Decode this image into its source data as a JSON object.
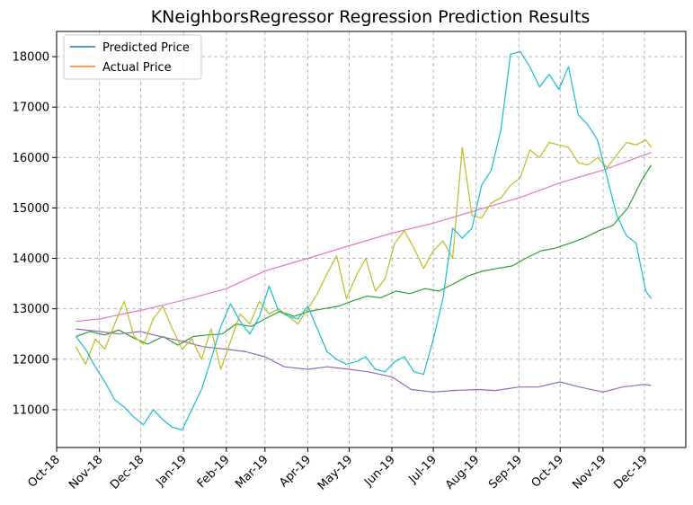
{
  "chart_data": {
    "type": "line",
    "title": "KNeighborsRegressor Regression Prediction Results",
    "xlabel": "",
    "ylabel": "",
    "x_range": [
      "2018-10-01",
      "2019-12-31"
    ],
    "ylim": [
      10250,
      18500
    ],
    "grid": true,
    "legend_position": "top-left",
    "x_ticks": [
      {
        "date": "2018-10-01",
        "label": "Oct-18"
      },
      {
        "date": "2018-11-01",
        "label": "Nov-18"
      },
      {
        "date": "2018-12-01",
        "label": "Dec-18"
      },
      {
        "date": "2019-01-01",
        "label": "Jan-19"
      },
      {
        "date": "2019-02-01",
        "label": "Feb-19"
      },
      {
        "date": "2019-03-01",
        "label": "Mar-19"
      },
      {
        "date": "2019-04-01",
        "label": "Apr-19"
      },
      {
        "date": "2019-05-01",
        "label": "May-19"
      },
      {
        "date": "2019-06-01",
        "label": "Jun-19"
      },
      {
        "date": "2019-07-01",
        "label": "Jul-19"
      },
      {
        "date": "2019-08-01",
        "label": "Aug-19"
      },
      {
        "date": "2019-09-01",
        "label": "Sep-19"
      },
      {
        "date": "2019-10-01",
        "label": "Oct-19"
      },
      {
        "date": "2019-11-01",
        "label": "Nov-19"
      },
      {
        "date": "2019-12-01",
        "label": "Dec-19"
      }
    ],
    "y_ticks": [
      11000,
      12000,
      13000,
      14000,
      15000,
      16000,
      17000,
      18000
    ],
    "legend": [
      {
        "label": "Predicted Price",
        "color": "#1f77b4"
      },
      {
        "label": "Actual Price",
        "color": "#ff7f0e"
      }
    ],
    "series": [
      {
        "color": "#2ca02c",
        "x": [
          "2018-10-15",
          "2018-10-25",
          "2018-11-05",
          "2018-11-15",
          "2018-11-26",
          "2018-12-06",
          "2018-12-17",
          "2018-12-28",
          "2019-01-08",
          "2019-01-18",
          "2019-01-29",
          "2019-02-08",
          "2019-02-19",
          "2019-03-01",
          "2019-03-12",
          "2019-03-22",
          "2019-04-02",
          "2019-04-12",
          "2019-04-23",
          "2019-05-03",
          "2019-05-14",
          "2019-05-24",
          "2019-06-04",
          "2019-06-14",
          "2019-06-25",
          "2019-07-05",
          "2019-07-16",
          "2019-07-26",
          "2019-08-06",
          "2019-08-16",
          "2019-08-27",
          "2019-09-06",
          "2019-09-17",
          "2019-09-27",
          "2019-10-08",
          "2019-10-18",
          "2019-10-29",
          "2019-11-08",
          "2019-11-19",
          "2019-11-29",
          "2019-12-06"
        ],
        "values": [
          12450,
          12550,
          12480,
          12580,
          12420,
          12300,
          12450,
          12280,
          12450,
          12480,
          12500,
          12700,
          12650,
          12800,
          12950,
          12850,
          12950,
          13000,
          13050,
          13150,
          13250,
          13220,
          13350,
          13300,
          13400,
          13350,
          13500,
          13650,
          13750,
          13800,
          13850,
          14000,
          14150,
          14200,
          14300,
          14400,
          14550,
          14650,
          15000,
          15550,
          15850
        ]
      },
      {
        "color": "#9467bd",
        "x": [
          "2018-10-15",
          "2018-11-01",
          "2018-11-15",
          "2018-12-01",
          "2018-12-15",
          "2019-01-01",
          "2019-01-15",
          "2019-02-01",
          "2019-02-15",
          "2019-03-01",
          "2019-03-15",
          "2019-04-01",
          "2019-04-15",
          "2019-05-01",
          "2019-05-15",
          "2019-06-01",
          "2019-06-15",
          "2019-07-01",
          "2019-07-15",
          "2019-08-01",
          "2019-08-15",
          "2019-09-01",
          "2019-09-15",
          "2019-10-01",
          "2019-10-15",
          "2019-11-01",
          "2019-11-15",
          "2019-12-01",
          "2019-12-06"
        ],
        "values": [
          12600,
          12550,
          12500,
          12550,
          12450,
          12350,
          12250,
          12200,
          12150,
          12050,
          11850,
          11800,
          11850,
          11800,
          11750,
          11650,
          11400,
          11350,
          11380,
          11400,
          11380,
          11450,
          11450,
          11550,
          11450,
          11350,
          11450,
          11500,
          11480
        ]
      },
      {
        "color": "#e377c2",
        "x": [
          "2018-10-15",
          "2018-11-01",
          "2018-12-01",
          "2019-01-01",
          "2019-02-01",
          "2019-03-01",
          "2019-04-01",
          "2019-05-01",
          "2019-06-01",
          "2019-07-01",
          "2019-08-01",
          "2019-09-01",
          "2019-10-01",
          "2019-11-01",
          "2019-12-06"
        ],
        "values": [
          12750,
          12800,
          12970,
          13170,
          13400,
          13750,
          14000,
          14250,
          14500,
          14700,
          14950,
          15200,
          15500,
          15750,
          16100
        ]
      },
      {
        "color": "#bcbd22",
        "x": [
          "2018-10-15",
          "2018-10-22",
          "2018-10-29",
          "2018-11-05",
          "2018-11-12",
          "2018-11-19",
          "2018-11-26",
          "2018-12-03",
          "2018-12-10",
          "2018-12-17",
          "2018-12-24",
          "2018-12-31",
          "2019-01-07",
          "2019-01-14",
          "2019-01-21",
          "2019-01-28",
          "2019-02-04",
          "2019-02-11",
          "2019-02-18",
          "2019-02-25",
          "2019-03-04",
          "2019-03-11",
          "2019-03-18",
          "2019-03-25",
          "2019-04-01",
          "2019-04-08",
          "2019-04-15",
          "2019-04-22",
          "2019-04-29",
          "2019-05-06",
          "2019-05-13",
          "2019-05-20",
          "2019-05-27",
          "2019-06-03",
          "2019-06-10",
          "2019-06-17",
          "2019-06-24",
          "2019-07-01",
          "2019-07-08",
          "2019-07-15",
          "2019-07-22",
          "2019-07-29",
          "2019-08-05",
          "2019-08-12",
          "2019-08-19",
          "2019-08-26",
          "2019-09-02",
          "2019-09-09",
          "2019-09-16",
          "2019-09-23",
          "2019-09-30",
          "2019-10-07",
          "2019-10-14",
          "2019-10-21",
          "2019-10-28",
          "2019-11-04",
          "2019-11-11",
          "2019-11-18",
          "2019-11-25",
          "2019-12-02",
          "2019-12-06"
        ],
        "values": [
          12250,
          11900,
          12400,
          12200,
          12700,
          13150,
          12450,
          12300,
          12800,
          13050,
          12600,
          12200,
          12400,
          12000,
          12600,
          11800,
          12350,
          12900,
          12700,
          13150,
          12900,
          13000,
          12850,
          12700,
          13000,
          13300,
          13700,
          14050,
          13200,
          13650,
          14000,
          13350,
          13600,
          14300,
          14550,
          14200,
          13800,
          14150,
          14350,
          14000,
          16200,
          14850,
          14800,
          15100,
          15200,
          15450,
          15600,
          16150,
          16000,
          16300,
          16250,
          16200,
          15900,
          15850,
          16000,
          15800,
          16050,
          16300,
          16250,
          16350,
          16200
        ]
      },
      {
        "color": "#17becf",
        "x": [
          "2018-10-15",
          "2018-10-22",
          "2018-10-29",
          "2018-11-05",
          "2018-11-12",
          "2018-11-19",
          "2018-11-26",
          "2018-12-03",
          "2018-12-10",
          "2018-12-17",
          "2018-12-24",
          "2018-12-31",
          "2019-01-07",
          "2019-01-14",
          "2019-01-21",
          "2019-01-28",
          "2019-02-04",
          "2019-02-11",
          "2019-02-18",
          "2019-02-25",
          "2019-03-04",
          "2019-03-11",
          "2019-03-18",
          "2019-03-25",
          "2019-04-01",
          "2019-04-08",
          "2019-04-15",
          "2019-04-22",
          "2019-04-29",
          "2019-05-06",
          "2019-05-13",
          "2019-05-20",
          "2019-05-27",
          "2019-06-03",
          "2019-06-10",
          "2019-06-17",
          "2019-06-24",
          "2019-07-01",
          "2019-07-08",
          "2019-07-15",
          "2019-07-22",
          "2019-07-29",
          "2019-08-05",
          "2019-08-12",
          "2019-08-19",
          "2019-08-26",
          "2019-09-02",
          "2019-09-09",
          "2019-09-16",
          "2019-09-23",
          "2019-09-30",
          "2019-10-07",
          "2019-10-14",
          "2019-10-21",
          "2019-10-28",
          "2019-11-04",
          "2019-11-11",
          "2019-11-18",
          "2019-11-25",
          "2019-12-02",
          "2019-12-06"
        ],
        "values": [
          12450,
          12200,
          11850,
          11550,
          11200,
          11050,
          10850,
          10700,
          11000,
          10800,
          10650,
          10600,
          11000,
          11400,
          12000,
          12650,
          13100,
          12750,
          12500,
          12850,
          13450,
          12950,
          12850,
          12800,
          13050,
          12600,
          12150,
          12000,
          11900,
          11950,
          12050,
          11800,
          11750,
          11950,
          12050,
          11750,
          11700,
          12400,
          13200,
          14600,
          14400,
          14600,
          15450,
          15750,
          16550,
          18050,
          18100,
          17800,
          17400,
          17650,
          17350,
          17800,
          16850,
          16650,
          16350,
          15600,
          14850,
          14450,
          14300,
          13350,
          13200
        ]
      }
    ]
  }
}
